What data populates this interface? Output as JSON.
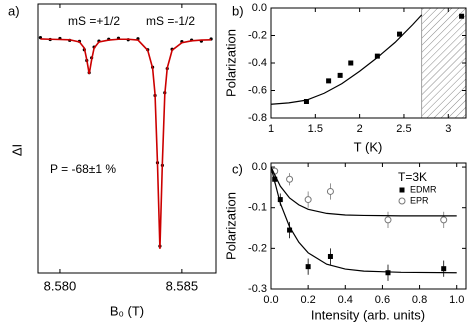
{
  "chart_data": [
    {
      "type": "line",
      "panel": "a)",
      "xlabel": "B₀ (T)",
      "ylabel": "ΔI",
      "annotations": [
        "mS =+1/2",
        "mS =-1/2",
        "P = -68±1 %"
      ],
      "xlim": [
        8.5791,
        8.5864
      ],
      "ylim": [
        0,
        1
      ],
      "xticks": [
        {
          "value": 8.58,
          "label": "8.580"
        },
        {
          "value": 8.585,
          "label": "8.585"
        }
      ],
      "series": [
        {
          "mode": "markers",
          "marker": "dot",
          "color": "#000000",
          "x": [
            8.5792,
            8.5796,
            8.58,
            8.5804,
            8.5808,
            8.581,
            8.5811,
            8.5812,
            8.5813,
            8.5814,
            8.5816,
            8.582,
            8.5824,
            8.5828,
            8.5832,
            8.5836,
            8.5838,
            8.5839,
            8.584,
            8.5841,
            8.5842,
            8.5843,
            8.5844,
            8.5846,
            8.585,
            8.5854,
            8.5858,
            8.5862
          ],
          "values": [
            0.875,
            0.868,
            0.872,
            0.865,
            0.861,
            0.83,
            0.79,
            0.745,
            0.8,
            0.84,
            0.862,
            0.869,
            0.873,
            0.867,
            0.871,
            0.83,
            0.765,
            0.66,
            0.41,
            0.1,
            0.4,
            0.67,
            0.76,
            0.832,
            0.86,
            0.866,
            0.862,
            0.87
          ]
        },
        {
          "mode": "line",
          "color": "#cc0000",
          "x": [
            8.5792,
            8.5796,
            8.58,
            8.5804,
            8.5808,
            8.581,
            8.5811,
            8.5812,
            8.5813,
            8.5814,
            8.5816,
            8.582,
            8.5824,
            8.5828,
            8.5832,
            8.5836,
            8.5838,
            8.5839,
            8.584,
            8.5841,
            8.5842,
            8.5843,
            8.5844,
            8.5846,
            8.585,
            8.5854,
            8.5858,
            8.5862
          ],
          "values": [
            0.87,
            0.869,
            0.868,
            0.867,
            0.859,
            0.836,
            0.793,
            0.74,
            0.793,
            0.836,
            0.859,
            0.866,
            0.869,
            0.869,
            0.866,
            0.828,
            0.762,
            0.664,
            0.408,
            0.09,
            0.408,
            0.664,
            0.762,
            0.828,
            0.856,
            0.863,
            0.866,
            0.867
          ]
        }
      ]
    },
    {
      "type": "line",
      "panel": "b)",
      "xlabel": "T (K)",
      "ylabel": "Polarization",
      "xlim": [
        1,
        3.2
      ],
      "ylim": [
        -0.8,
        0
      ],
      "xticks": [
        1,
        1.5,
        2,
        2.5,
        3
      ],
      "yticks": [
        -0.8,
        -0.6,
        -0.4,
        -0.2,
        {
          "value": 0,
          "label": "0.0"
        }
      ],
      "shaded_region": [
        2.7,
        3.2
      ],
      "series": [
        {
          "mode": "markers",
          "marker": "square",
          "color": "#000000",
          "x": [
            1.4,
            1.65,
            1.78,
            1.9,
            2.2,
            2.45,
            3.15
          ],
          "values": [
            -0.68,
            -0.53,
            -0.49,
            -0.4,
            -0.35,
            -0.19,
            -0.06
          ]
        },
        {
          "mode": "line",
          "color": "#000000",
          "x": [
            1,
            1.2,
            1.4,
            1.6,
            1.8,
            2,
            2.2,
            2.4,
            2.6,
            2.7
          ],
          "values": [
            -0.7,
            -0.69,
            -0.67,
            -0.62,
            -0.55,
            -0.46,
            -0.36,
            -0.25,
            -0.12,
            -0.05
          ]
        }
      ]
    },
    {
      "type": "line",
      "panel": "c)",
      "xlabel": "Intensity (arb. units)",
      "ylabel": "Polarization",
      "annotations": [
        "T=3K"
      ],
      "xlim": [
        0,
        1.05
      ],
      "ylim": [
        -0.3,
        0.01
      ],
      "xticks": [
        {
          "value": 0,
          "label": "0.0"
        },
        0.2,
        0.4,
        0.6,
        0.8,
        {
          "value": 1,
          "label": "1.0"
        }
      ],
      "yticks": [
        -0.3,
        -0.2,
        -0.1,
        {
          "value": 0,
          "label": "0.0"
        }
      ],
      "series": [
        {
          "name": "EDMR",
          "mode": "markers",
          "marker": "square",
          "color": "#000000",
          "x": [
            0.02,
            0.05,
            0.1,
            0.2,
            0.32,
            0.63,
            0.93
          ],
          "values": [
            -0.03,
            -0.08,
            -0.155,
            -0.245,
            -0.22,
            -0.26,
            -0.25
          ],
          "errors": [
            0.01,
            0.015,
            0.02,
            0.02,
            0.02,
            0.02,
            0.02
          ]
        },
        {
          "name": "EPR",
          "mode": "markers",
          "marker": "open-circle",
          "color": "#777777",
          "x": [
            0.02,
            0.1,
            0.2,
            0.32,
            0.63,
            0.93
          ],
          "values": [
            -0.01,
            -0.03,
            -0.08,
            -0.06,
            -0.13,
            -0.13
          ],
          "errors": [
            0.01,
            0.015,
            0.02,
            0.02,
            0.02,
            0.02
          ]
        },
        {
          "mode": "line",
          "color": "#000000",
          "x": [
            0,
            0.05,
            0.1,
            0.15,
            0.2,
            0.3,
            0.4,
            0.5,
            0.7,
            1
          ],
          "values": [
            0,
            -0.089,
            -0.147,
            -0.185,
            -0.211,
            -0.239,
            -0.251,
            -0.256,
            -0.259,
            -0.26
          ]
        },
        {
          "mode": "line",
          "color": "#000000",
          "x": [
            0,
            0.05,
            0.1,
            0.15,
            0.2,
            0.3,
            0.4,
            0.5,
            0.7,
            1
          ],
          "values": [
            0,
            -0.047,
            -0.076,
            -0.093,
            -0.104,
            -0.114,
            -0.118,
            -0.119,
            -0.12,
            -0.12
          ]
        }
      ]
    }
  ]
}
